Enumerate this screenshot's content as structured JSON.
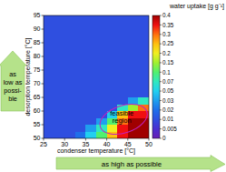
{
  "chart_data": {
    "type": "heatmap",
    "x_label": "condenser temperature [°C]",
    "y_label": "desorption temperature [°C]",
    "colorbar_title": "water uptake [g g⁻¹]",
    "annotations": {
      "region": [
        "feasible",
        "region"
      ],
      "y_hint": [
        "as",
        "low as",
        "possi-",
        "ble"
      ],
      "x_hint": "as high as possible"
    },
    "xlim": [
      25,
      50
    ],
    "ylim": [
      50,
      95
    ],
    "xticks": [
      25,
      30,
      35,
      40,
      45,
      50
    ],
    "yticks": [
      50,
      55,
      60,
      65,
      70,
      75,
      80,
      85,
      90,
      95
    ],
    "x": [
      26.25,
      28.75,
      31.25,
      33.75,
      36.25,
      38.75,
      41.25,
      43.75,
      46.25,
      48.75
    ],
    "y": [
      51.25,
      53.75,
      56.25,
      58.75,
      61.25,
      63.75,
      66.25,
      68.75,
      71.25,
      73.75,
      76.25,
      78.75,
      81.25,
      83.75,
      86.25,
      88.75,
      91.25,
      93.75
    ],
    "values": [
      [
        0.01,
        0.01,
        0.01,
        0.02,
        0.05,
        0.1,
        0.25,
        0.35,
        0.4,
        0.4
      ],
      [
        0.01,
        0.01,
        0.01,
        0.01,
        0.03,
        0.07,
        0.2,
        0.35,
        0.4,
        0.4
      ],
      [
        0.01,
        0.01,
        0.01,
        0.01,
        0.01,
        0.03,
        0.1,
        0.3,
        0.4,
        0.4
      ],
      [
        0.01,
        0.01,
        0.01,
        0.01,
        0.01,
        0.01,
        0.05,
        0.25,
        0.35,
        0.35
      ],
      [
        0.01,
        0.01,
        0.01,
        0.01,
        0.01,
        0.01,
        0.01,
        0.07,
        0.15,
        0.3
      ],
      [
        0.01,
        0.01,
        0.01,
        0.01,
        0.01,
        0.01,
        0.01,
        0.01,
        0.03,
        0.07
      ],
      [
        0.01,
        0.01,
        0.01,
        0.01,
        0.01,
        0.01,
        0.01,
        0.01,
        0.01,
        0.01
      ],
      [
        0.01,
        0.01,
        0.01,
        0.01,
        0.01,
        0.01,
        0.01,
        0.01,
        0.01,
        0.01
      ],
      [
        0.01,
        0.01,
        0.01,
        0.01,
        0.01,
        0.01,
        0.01,
        0.01,
        0.01,
        0.01
      ],
      [
        0.01,
        0.01,
        0.01,
        0.01,
        0.01,
        0.01,
        0.01,
        0.01,
        0.01,
        0.01
      ],
      [
        0.01,
        0.01,
        0.01,
        0.01,
        0.01,
        0.01,
        0.01,
        0.01,
        0.01,
        0.01
      ],
      [
        0.01,
        0.01,
        0.01,
        0.01,
        0.01,
        0.01,
        0.01,
        0.01,
        0.01,
        0.01
      ],
      [
        0.01,
        0.01,
        0.01,
        0.01,
        0.01,
        0.01,
        0.01,
        0.01,
        0.01,
        0.01
      ],
      [
        0.01,
        0.01,
        0.01,
        0.01,
        0.01,
        0.01,
        0.01,
        0.01,
        0.01,
        0.01
      ],
      [
        0.01,
        0.01,
        0.01,
        0.01,
        0.01,
        0.01,
        0.01,
        0.01,
        0.01,
        0.01
      ],
      [
        0.01,
        0.01,
        0.01,
        0.01,
        0.01,
        0.01,
        0.01,
        0.01,
        0.01,
        0.01
      ],
      [
        0.01,
        0.01,
        0.01,
        0.01,
        0.01,
        0.01,
        0.01,
        0.01,
        0.01,
        0.01
      ],
      [
        0.01,
        0.01,
        0.01,
        0.01,
        0.01,
        0.01,
        0.01,
        0.01,
        0.01,
        0.01
      ]
    ],
    "colorbar_range": [
      0,
      0.4
    ],
    "colorbar_ticks": [
      0,
      0.005,
      0.01,
      0.02,
      0.03,
      0.05,
      0.07,
      0.1,
      0.15,
      0.2,
      0.25,
      0.3,
      0.35,
      0.4
    ]
  }
}
